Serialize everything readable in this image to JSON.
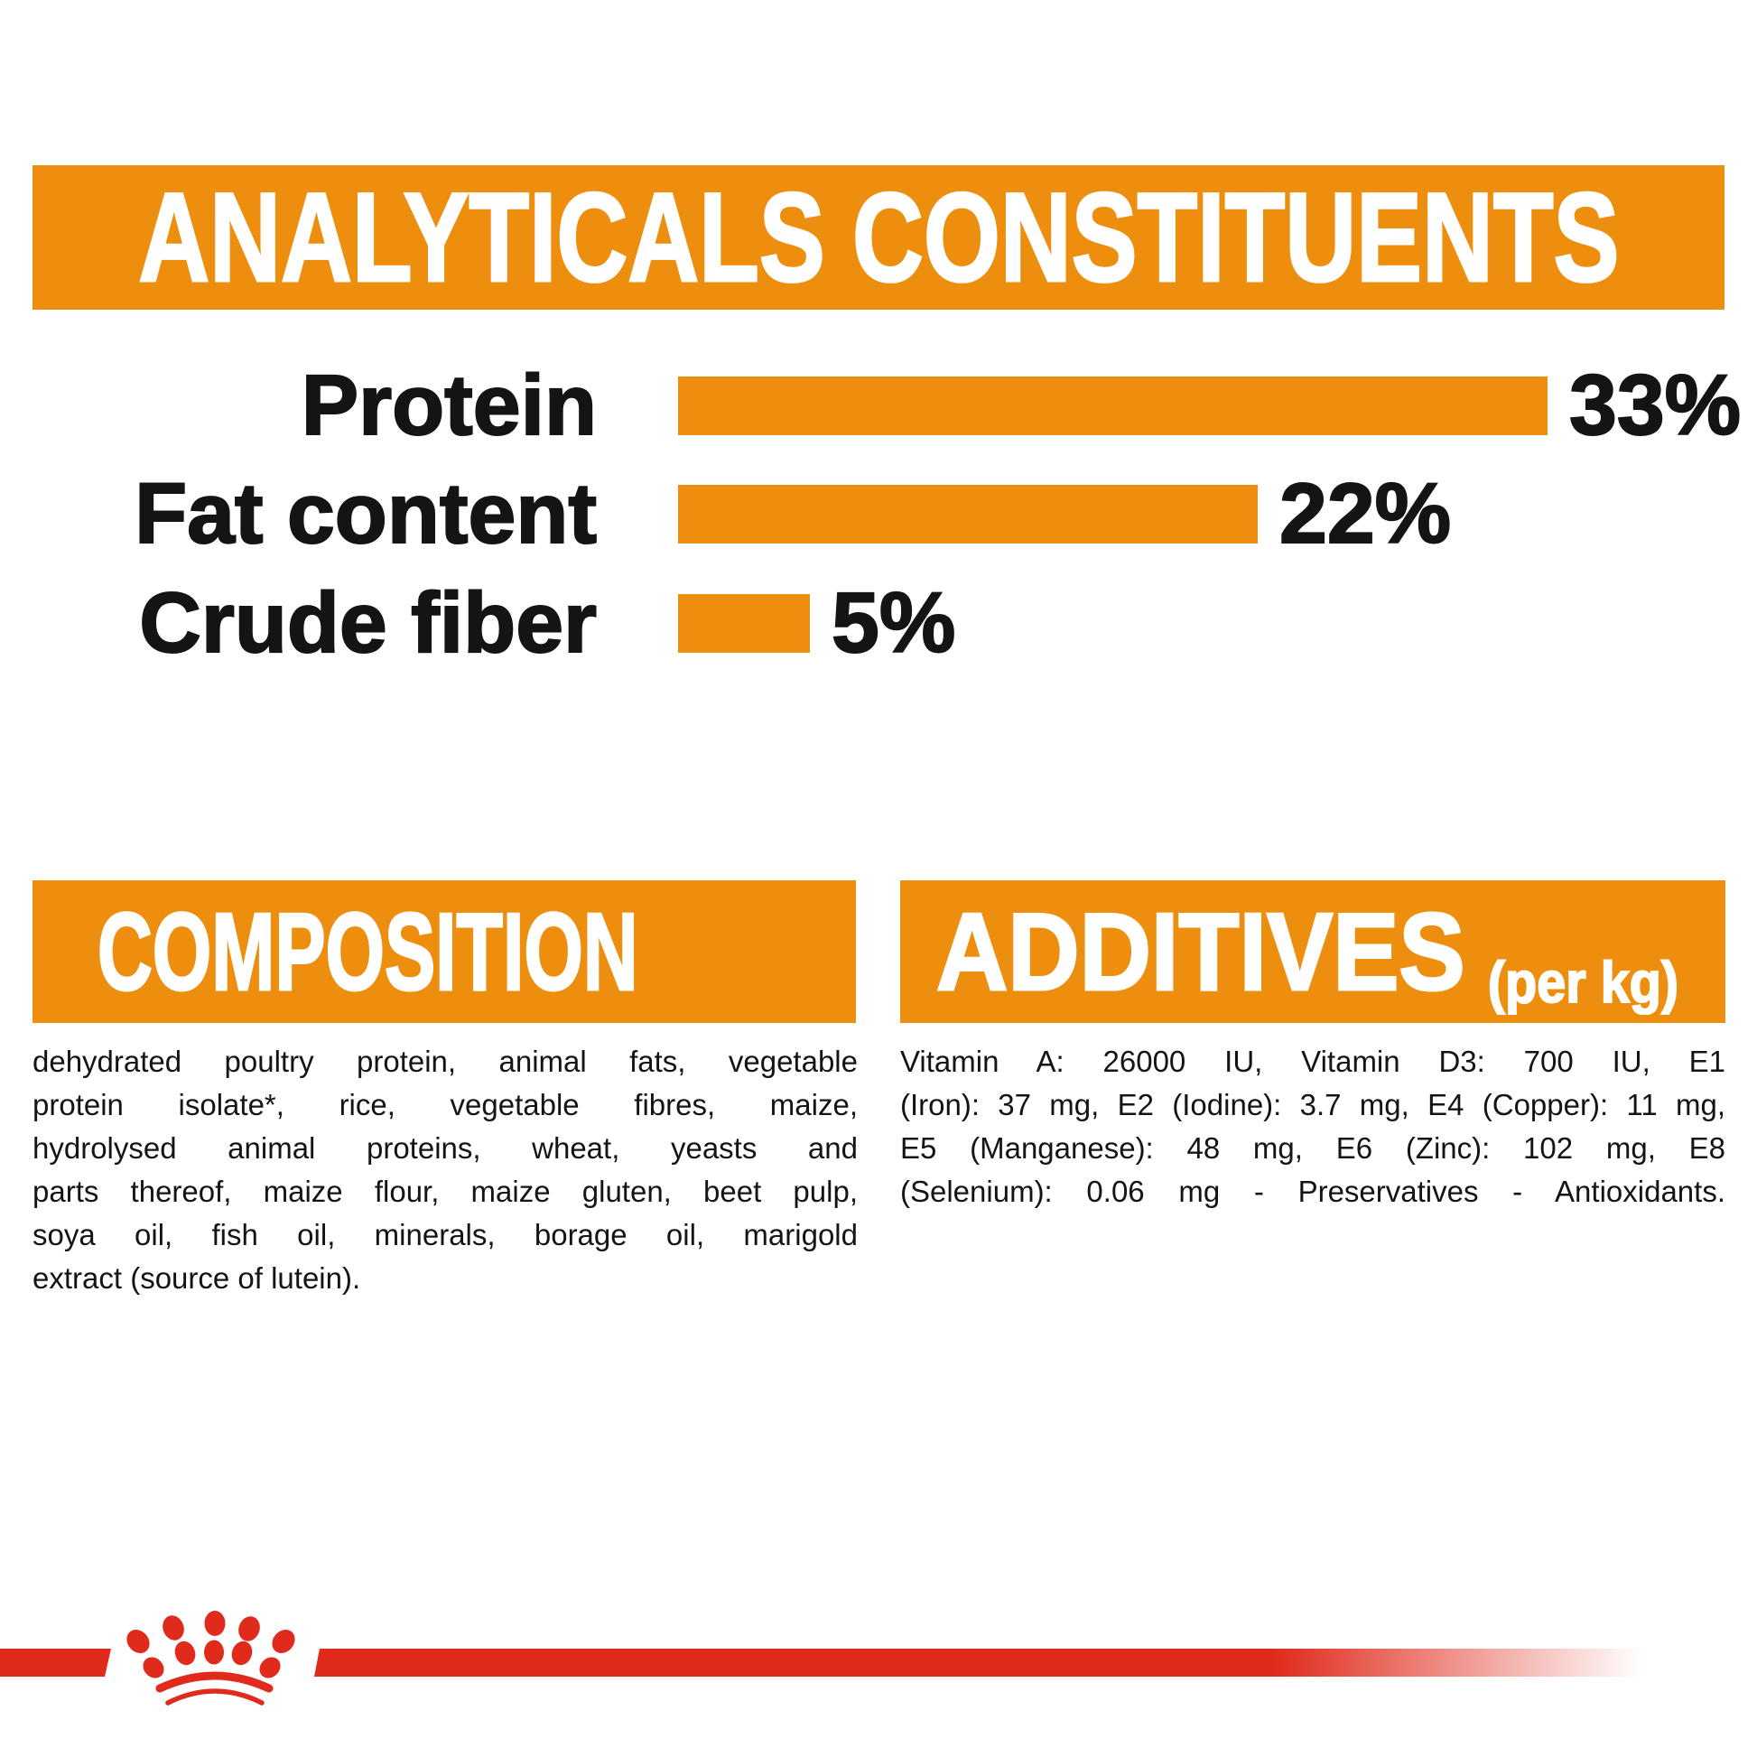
{
  "colors": {
    "orange": "#EE8E0F",
    "red": "#E02A1B",
    "text": "#141414",
    "white": "#FFFFFF"
  },
  "header": {
    "title": "ANALYTICALS CONSTITUENTS"
  },
  "chart_data": {
    "type": "bar",
    "orientation": "horizontal",
    "title": "ANALYTICALS CONSTITUENTS",
    "categories": [
      "Protein",
      "Fat content",
      "Crude fiber"
    ],
    "values": [
      33,
      22,
      5
    ],
    "value_labels": [
      "33%",
      "22%",
      "5%"
    ],
    "unit": "%",
    "xlim": [
      0,
      33
    ],
    "grid": false,
    "bar_color": "#EE8E0F",
    "value_label_position": "right-of-bar"
  },
  "composition": {
    "title": "COMPOSITION",
    "lines": [
      "dehydrated poultry protein, animal fats, vegetable",
      "protein isolate*, rice, vegetable fibres, maize,",
      "hydrolysed animal proteins, wheat, yeasts and",
      "parts thereof, maize flour, maize gluten, beet pulp,",
      "soya oil, fish oil, minerals, borage oil, marigold",
      "extract (source of lutein)."
    ],
    "full_text": "dehydrated poultry protein, animal fats, vegetable protein isolate*, rice, vegetable fibres, maize, hydrolysed animal proteins, wheat, yeasts and parts thereof, maize flour, maize gluten, beet pulp, soya oil, fish oil, minerals, borage oil, marigold extract (source of lutein)."
  },
  "additives": {
    "title": "ADDITIVES",
    "unit_suffix": "(per kg)",
    "lines": [
      "Vitamin A: 26000 IU, Vitamin D3: 700 IU, E1",
      "(Iron): 37 mg, E2 (Iodine): 3.7 mg, E4 (Copper): 11 mg,",
      "E5 (Manganese): 48 mg, E6 (Zinc): 102 mg, E8",
      "(Selenium): 0.06 mg - Preservatives - Antioxidants."
    ],
    "full_text": "Vitamin A: 26000 IU, Vitamin D3: 700 IU, E1 (Iron): 37 mg, E2 (Iodine): 3.7 mg, E4 (Copper): 11 mg, E5 (Manganese): 48 mg, E6 (Zinc): 102 mg, E8 (Selenium): 0.06 mg - Preservatives - Antioxidants."
  },
  "footer": {
    "brand_logo": "royal-canin-crown-logo"
  }
}
